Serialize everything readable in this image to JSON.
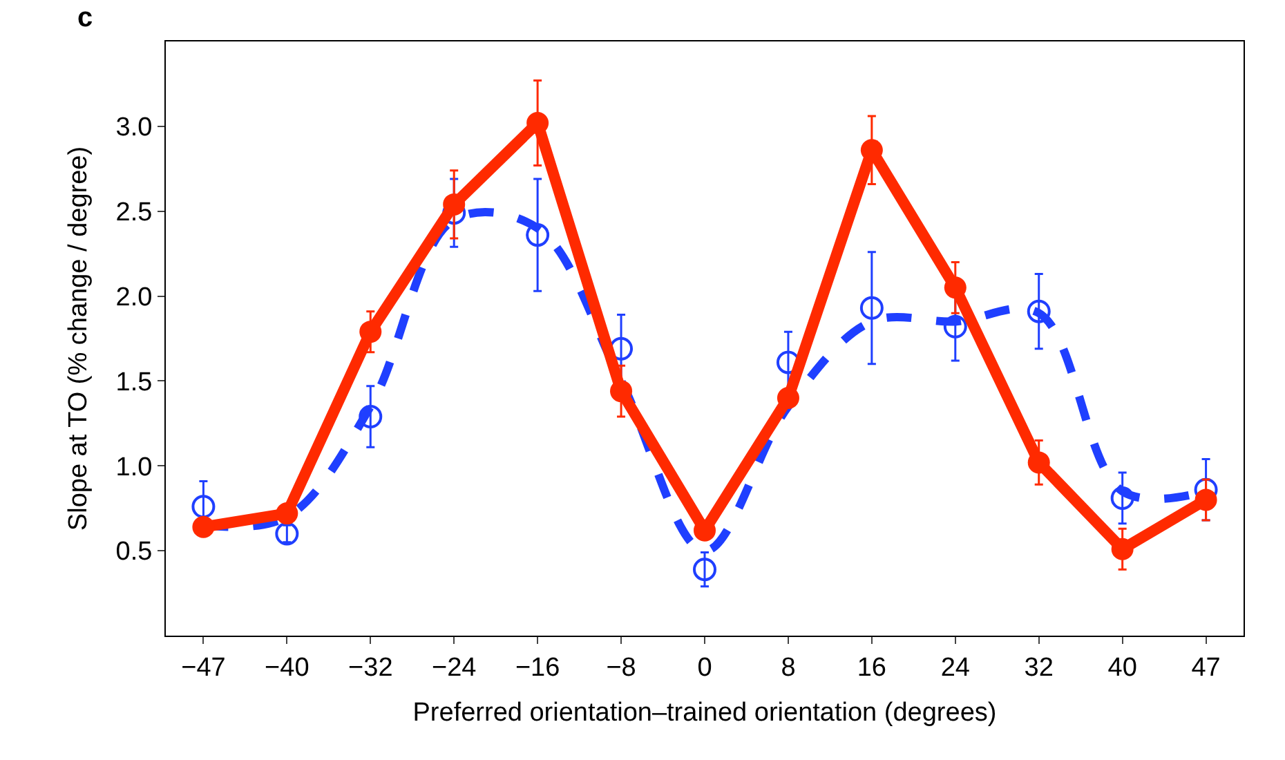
{
  "chart_data": {
    "type": "line",
    "annotations": [
      "c"
    ],
    "xlabel": "Preferred orientation–trained orientation (degrees)",
    "ylabel": "Slope at TO (% change / degree)",
    "categories": [
      "−47",
      "−40",
      "−32",
      "−24",
      "−16",
      "−8",
      "0",
      "8",
      "16",
      "24",
      "32",
      "40",
      "47"
    ],
    "ylim": [
      0,
      3.5
    ],
    "yticks": [
      0.5,
      {
        "value": 1,
        "label": "1.0"
      },
      1.5,
      {
        "value": 2,
        "label": "2.0"
      },
      2.5,
      {
        "value": 3,
        "label": "3.0"
      }
    ],
    "legend": false,
    "series": [
      {
        "type": "line",
        "line_style": "dashed",
        "marker": "none",
        "color": "#1f3fff",
        "values": [
          0.65,
          0.7,
          1.35,
          2.45,
          2.4,
          1.5,
          0.5,
          1.35,
          1.85,
          1.85,
          1.9,
          0.85,
          0.85
        ]
      },
      {
        "type": "scatter",
        "marker": "circle",
        "color": "#1f3fff",
        "values": [
          0.76,
          0.6,
          1.29,
          2.49,
          2.36,
          1.69,
          0.39,
          1.61,
          1.93,
          1.82,
          1.91,
          0.81,
          0.86
        ],
        "errors": [
          0.15,
          0.05,
          0.18,
          0.2,
          0.33,
          0.2,
          0.1,
          0.18,
          0.33,
          0.2,
          0.22,
          0.15,
          0.18
        ]
      },
      {
        "line_style": "solid",
        "marker": "circle",
        "color": "#ff2a00",
        "values": [
          0.64,
          0.72,
          1.79,
          2.54,
          3.02,
          1.44,
          0.62,
          1.4,
          2.86,
          2.05,
          1.02,
          0.51,
          0.8
        ],
        "errors": [
          0.05,
          0.05,
          0.12,
          0.2,
          0.25,
          0.15,
          0.05,
          0.05,
          0.2,
          0.15,
          0.13,
          0.12,
          0.12
        ]
      }
    ]
  }
}
